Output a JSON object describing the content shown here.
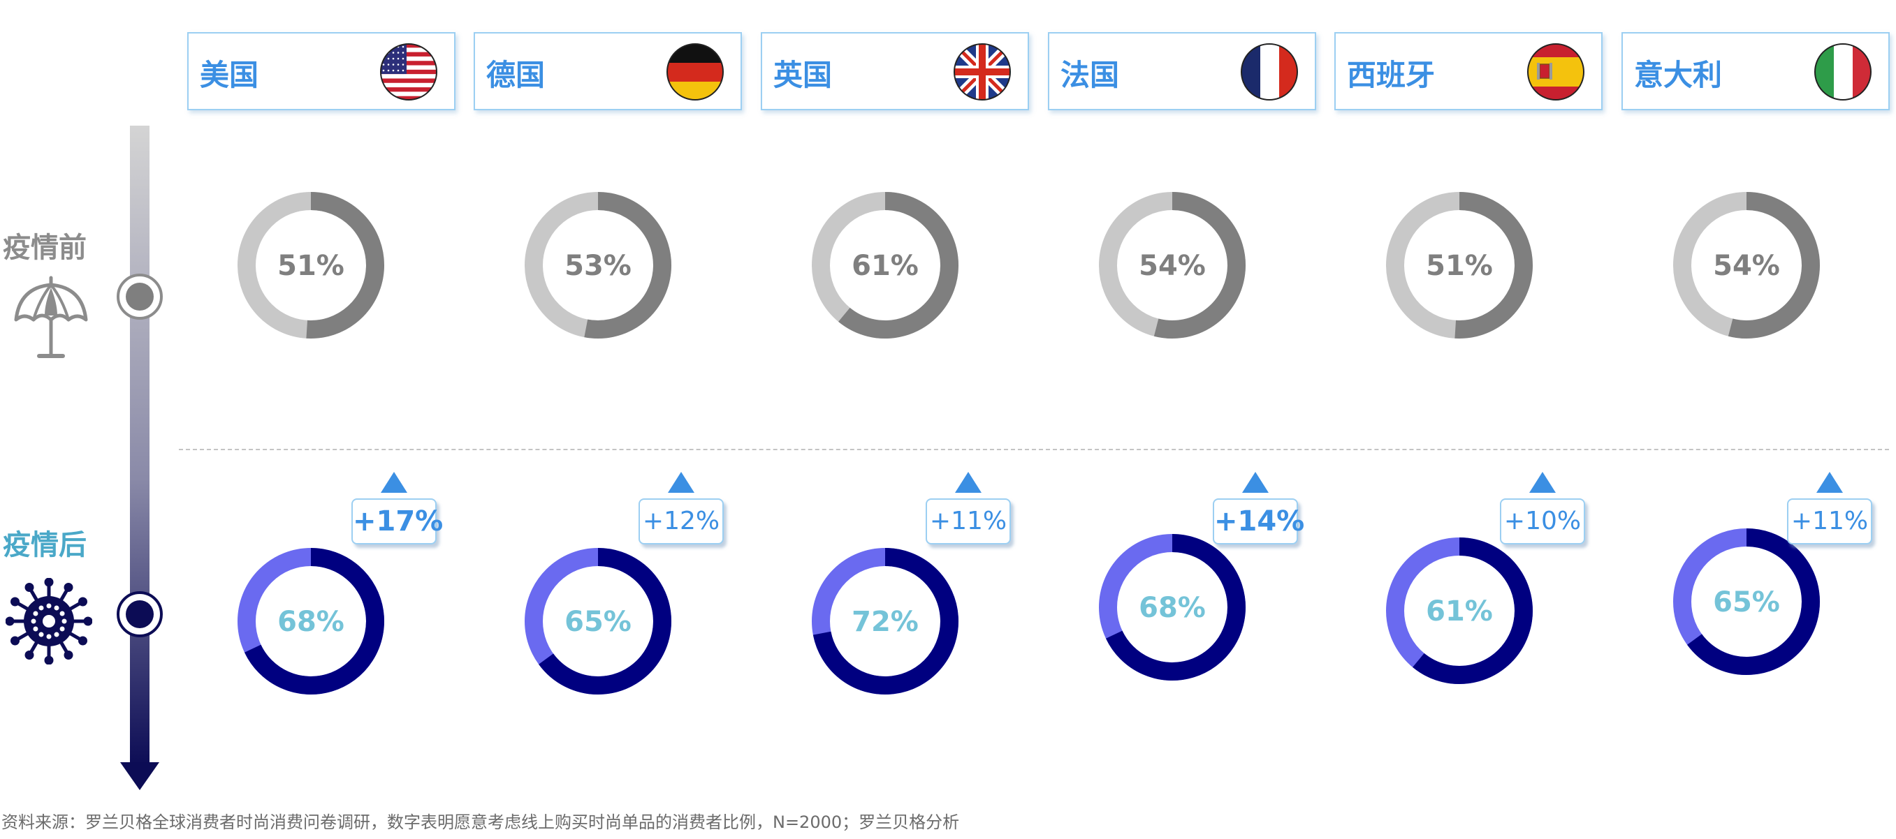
{
  "countries": [
    {
      "name": "美国",
      "flag": "usa-flag-icon"
    },
    {
      "name": "德国",
      "flag": "germany-flag-icon"
    },
    {
      "name": "英国",
      "flag": "uk-flag-icon"
    },
    {
      "name": "法国",
      "flag": "france-flag-icon"
    },
    {
      "name": "西班牙",
      "flag": "spain-flag-icon"
    },
    {
      "name": "意大利",
      "flag": "italy-flag-icon"
    }
  ],
  "rows": {
    "before_label": "疫情前",
    "after_label": "疫情后",
    "before_icon": "umbrella-icon",
    "after_icon": "virus-icon"
  },
  "colors": {
    "before_ring_bg": "#c8c8c8",
    "before_ring_fg": "#7f7f7f",
    "before_text": "#7f7f7f",
    "after_ring_bg": "#6a6af0",
    "after_ring_fg": "#000080",
    "after_text": "#74c3d8",
    "accent": "#3b8fe3",
    "after_label": "#4aa8c8",
    "before_label": "#8c8c8c"
  },
  "chart_data": {
    "type": "donut",
    "categories": [
      "美国",
      "德国",
      "英国",
      "法国",
      "西班牙",
      "意大利"
    ],
    "series": [
      {
        "name": "疫情前",
        "values": [
          51,
          53,
          61,
          54,
          51,
          54
        ],
        "labels": [
          "51%",
          "53%",
          "61%",
          "54%",
          "51%",
          "54%"
        ]
      },
      {
        "name": "疫情后",
        "values": [
          68,
          65,
          72,
          68,
          61,
          65
        ],
        "labels": [
          "68%",
          "65%",
          "72%",
          "68%",
          "61%",
          "65%"
        ]
      }
    ],
    "changes": [
      "+17%",
      "+12%",
      "+11%",
      "+14%",
      "+10%",
      "+11%"
    ],
    "change_emphasis": [
      true,
      false,
      false,
      true,
      false,
      false
    ]
  },
  "source": "资料来源：罗兰贝格全球消费者时尚消费问卷调研，数字表明愿意考虑线上购买时尚单品的消费者比例，N=2000；罗兰贝格分析"
}
